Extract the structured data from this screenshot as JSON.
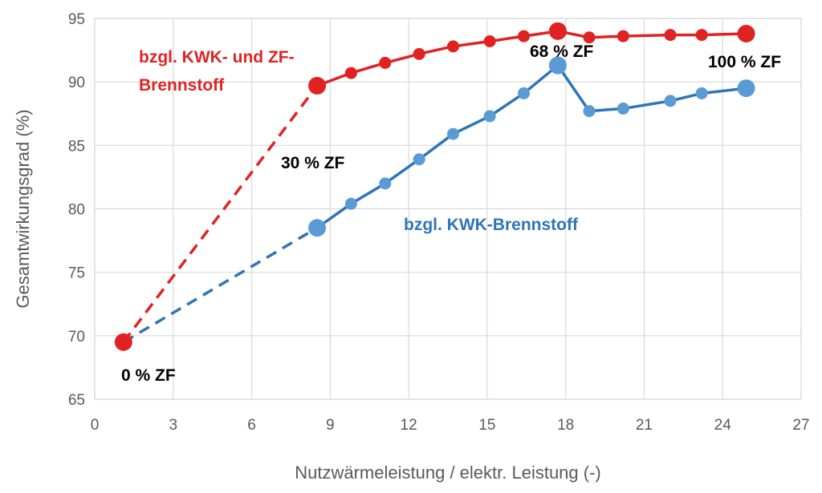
{
  "chart_data": {
    "type": "line",
    "title": "",
    "xlabel": "Nutzwärmeleistung / elektr. Leistung (-)",
    "ylabel": "Gesamtwirkungsgrad (%)",
    "xlim": [
      0,
      27
    ],
    "ylim": [
      65,
      95
    ],
    "xticks": [
      0,
      3,
      6,
      9,
      12,
      15,
      18,
      21,
      24,
      27
    ],
    "yticks": [
      65,
      70,
      75,
      80,
      85,
      90,
      95
    ],
    "grid": true,
    "series": [
      {
        "name_lines": [
          "bzgl. KWK- und ZF-",
          "Brennstoff"
        ],
        "color": "#e02322",
        "dashed_segment": [
          {
            "x": 1.1,
            "y": 69.5
          },
          {
            "x": 8.5,
            "y": 89.7
          }
        ],
        "points": [
          {
            "x": 8.5,
            "y": 89.7,
            "marker": "large"
          },
          {
            "x": 9.8,
            "y": 90.7
          },
          {
            "x": 11.1,
            "y": 91.5
          },
          {
            "x": 12.4,
            "y": 92.2
          },
          {
            "x": 13.7,
            "y": 92.8
          },
          {
            "x": 15.1,
            "y": 93.2
          },
          {
            "x": 16.4,
            "y": 93.6
          },
          {
            "x": 17.7,
            "y": 94.0,
            "marker": "large"
          },
          {
            "x": 18.9,
            "y": 93.5
          },
          {
            "x": 20.2,
            "y": 93.6
          },
          {
            "x": 22.0,
            "y": 93.7
          },
          {
            "x": 23.2,
            "y": 93.7
          },
          {
            "x": 24.9,
            "y": 93.8,
            "marker": "large"
          }
        ]
      },
      {
        "name_lines": [
          "bzgl. KWK-Brennstoff"
        ],
        "color": "#2e75b6",
        "marker_color": "#5b9bd5",
        "dashed_segment": [
          {
            "x": 1.1,
            "y": 69.5
          },
          {
            "x": 8.5,
            "y": 78.5
          }
        ],
        "points": [
          {
            "x": 8.5,
            "y": 78.5,
            "marker": "large"
          },
          {
            "x": 9.8,
            "y": 80.4
          },
          {
            "x": 11.1,
            "y": 82.0
          },
          {
            "x": 12.4,
            "y": 83.9
          },
          {
            "x": 13.7,
            "y": 85.9
          },
          {
            "x": 15.1,
            "y": 87.3
          },
          {
            "x": 16.4,
            "y": 89.1
          },
          {
            "x": 17.7,
            "y": 91.3,
            "marker": "large"
          },
          {
            "x": 18.9,
            "y": 87.7
          },
          {
            "x": 20.2,
            "y": 87.9
          },
          {
            "x": 22.0,
            "y": 88.5
          },
          {
            "x": 23.2,
            "y": 89.1
          },
          {
            "x": 24.9,
            "y": 89.5,
            "marker": "large"
          }
        ]
      }
    ],
    "start_point": {
      "x": 1.1,
      "y": 69.5,
      "color": "#e02322"
    },
    "annotations": [
      "0 % ZF",
      "30 % ZF",
      "68 % ZF",
      "100 % ZF"
    ]
  }
}
